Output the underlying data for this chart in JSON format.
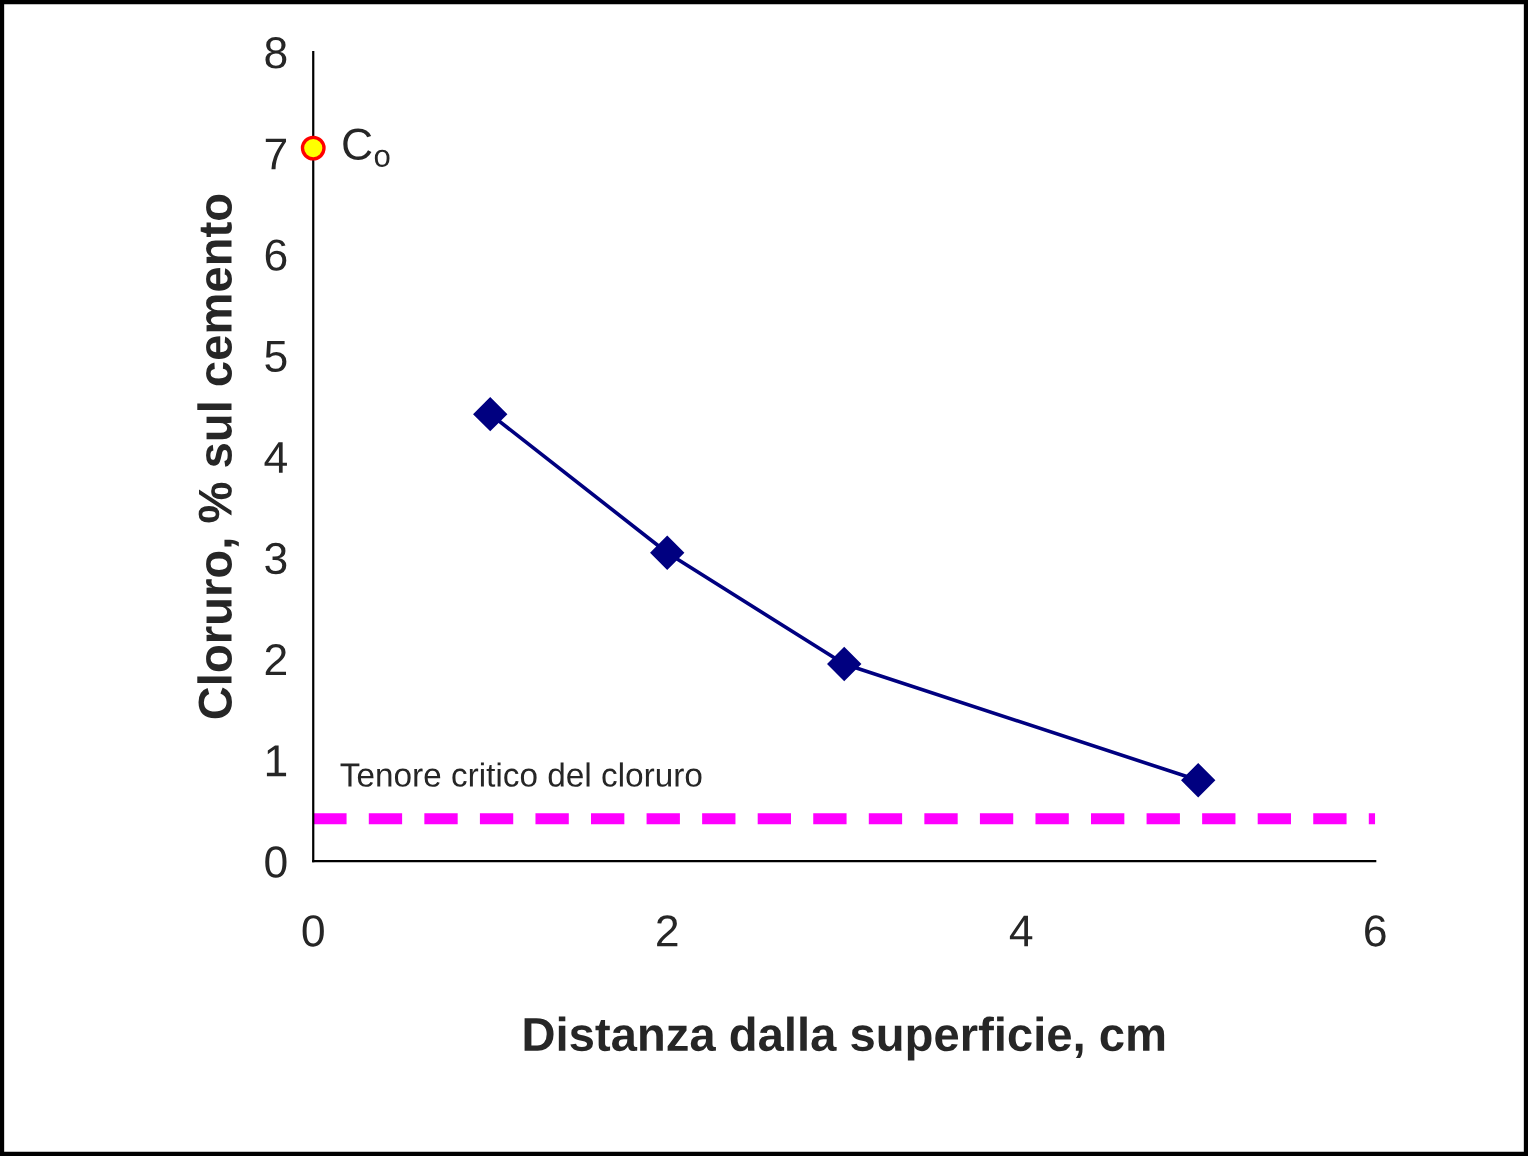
{
  "chart_data": {
    "type": "line",
    "xlabel": "Distanza dalla superficie, cm",
    "ylabel": "Cloruro, % sul cemento",
    "series": [
      {
        "color": "#000080",
        "marker": "diamond",
        "x": [
          1,
          2,
          3,
          5
        ],
        "values": [
          4.42,
          3.05,
          1.95,
          0.8
        ]
      },
      {
        "type": "scatter",
        "color": "#ffff00",
        "marker": "circle",
        "x": [
          0
        ],
        "values": [
          7.05
        ]
      }
    ],
    "annotations": [
      {
        "text": "C$_{o}$",
        "x": 0,
        "y": 7.05
      }
    ],
    "ref_lines": [
      {
        "axis": "y",
        "value": 0.42,
        "label": "Tenore critico del cloruro",
        "color": "#ff00ff",
        "line_style": "dashed"
      }
    ],
    "xlim": [
      0,
      6
    ],
    "xticks": [
      0,
      2,
      4,
      6
    ],
    "ylim": [
      0,
      8
    ],
    "yticks": [
      0,
      1,
      2,
      3,
      4,
      5,
      6,
      7,
      8
    ],
    "grid": false,
    "legend": false
  }
}
